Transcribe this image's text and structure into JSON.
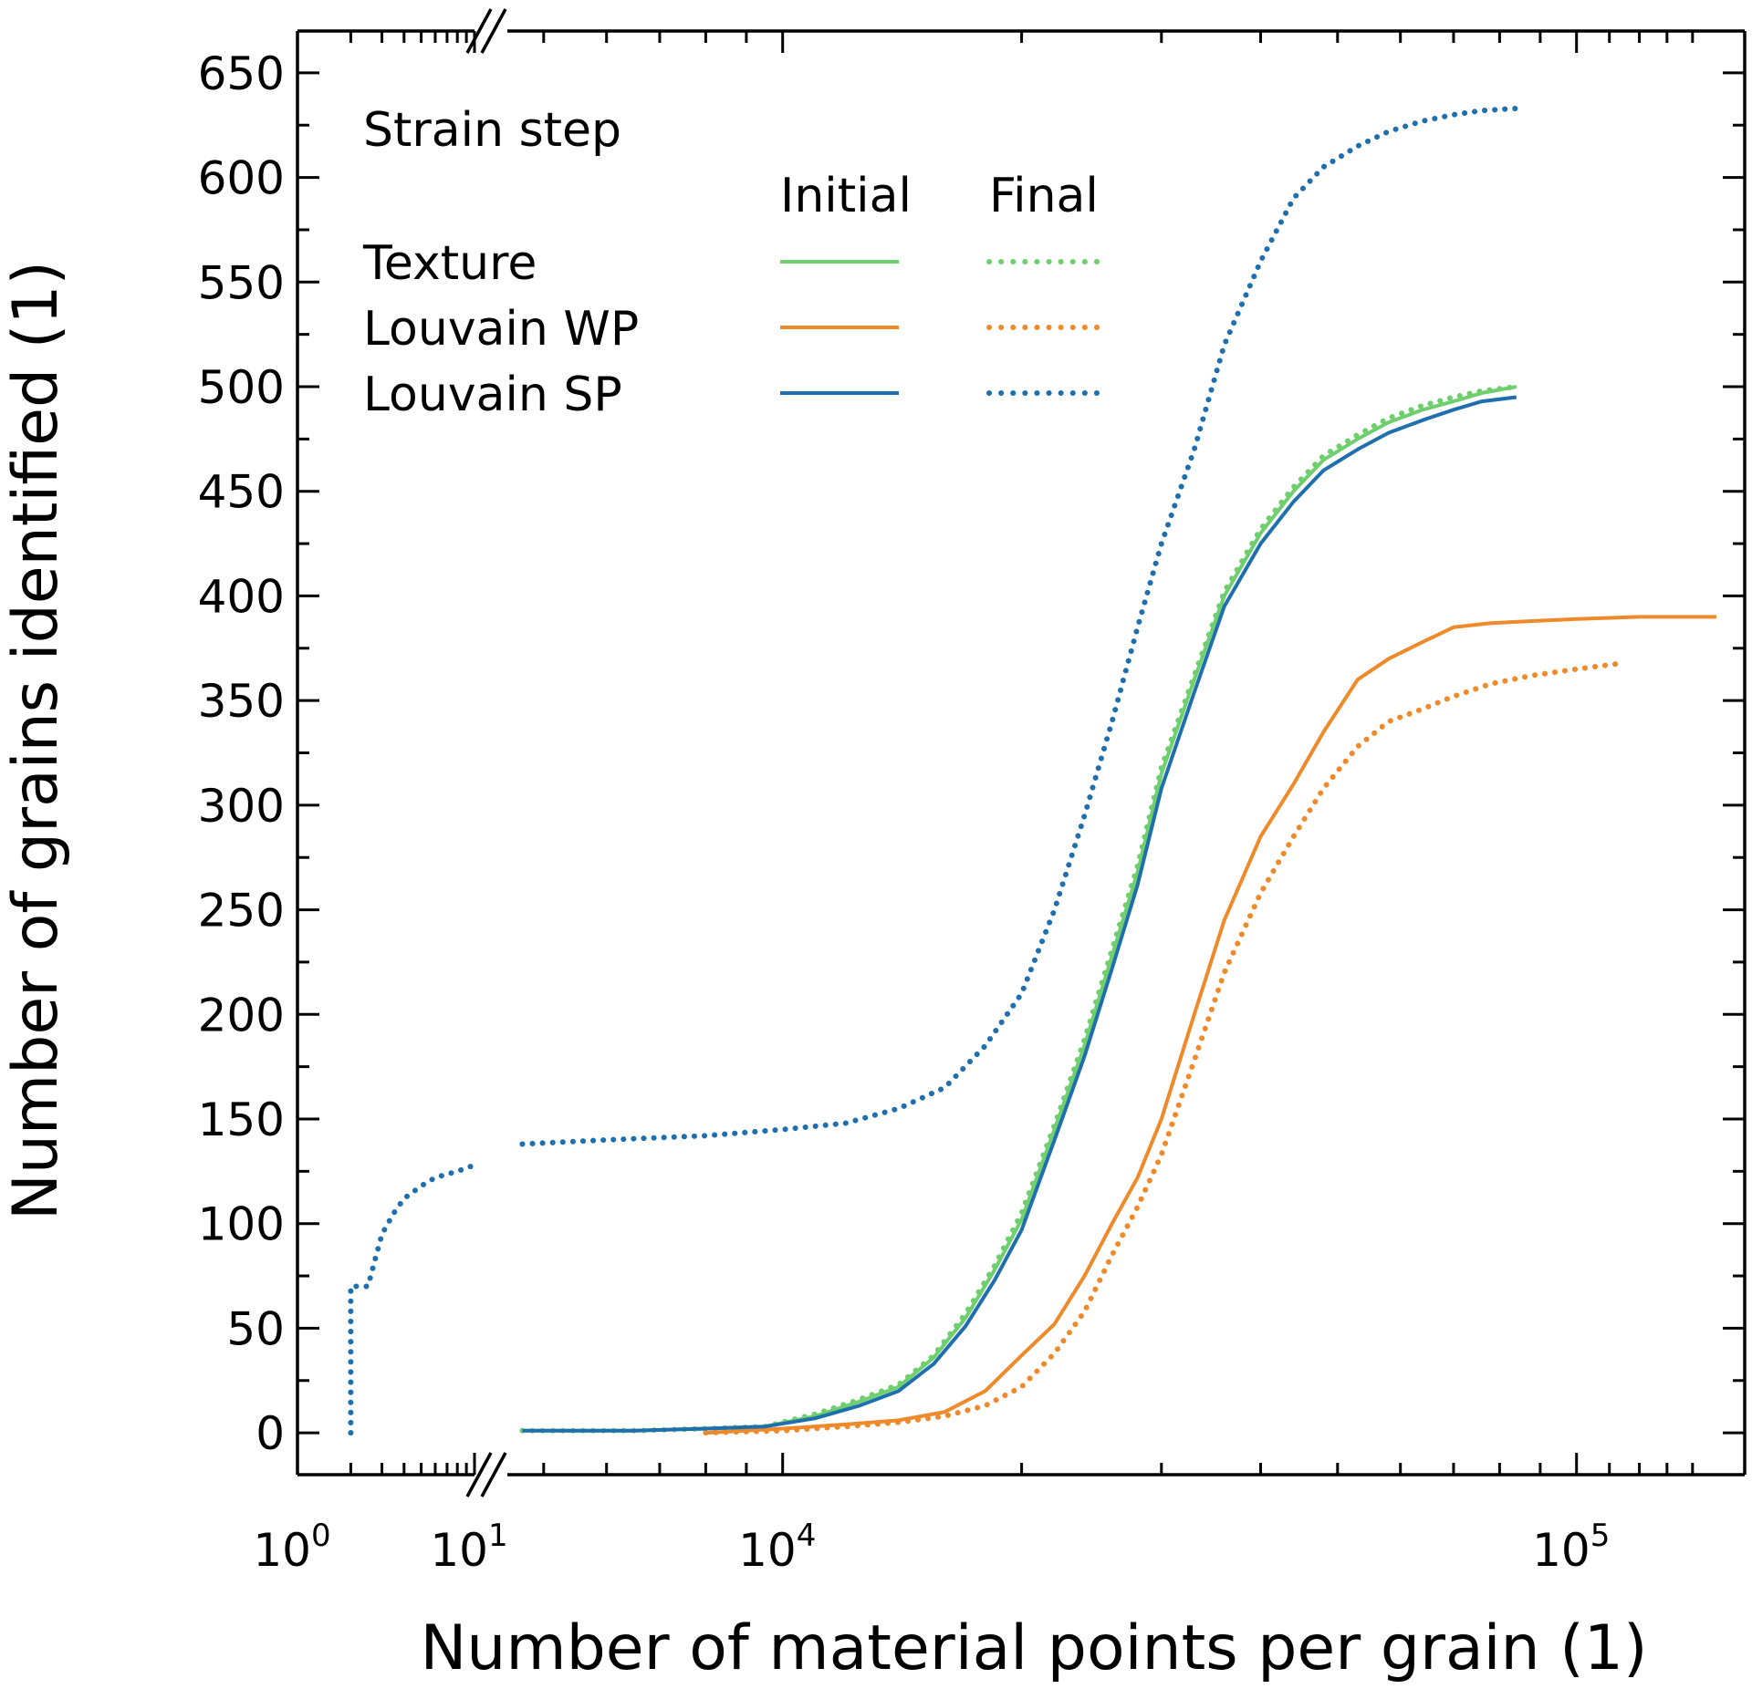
{
  "chart_data": {
    "type": "line",
    "title": "",
    "xlabel": "Number of material points per grain (1)",
    "ylabel": "Number of grains identified (1)",
    "xscale": "log (broken axis)",
    "x_break": [
      11,
      4500
    ],
    "xlim": [
      1,
      150000
    ],
    "ylim": [
      -20,
      670
    ],
    "x_tick_labels": [
      {
        "base": "10",
        "exp": "0",
        "value": 1
      },
      {
        "base": "10",
        "exp": "1",
        "value": 10
      },
      {
        "base": "10",
        "exp": "4",
        "value": 10000
      },
      {
        "base": "10",
        "exp": "5",
        "value": 100000
      }
    ],
    "y_ticks": [
      0,
      50,
      100,
      150,
      200,
      250,
      300,
      350,
      400,
      450,
      500,
      550,
      600,
      650
    ],
    "y_tick_labels": [
      "0",
      "50",
      "100",
      "150",
      "200",
      "250",
      "300",
      "350",
      "400",
      "450",
      "500",
      "550",
      "600",
      "650"
    ],
    "legend": {
      "title": "Strain step",
      "col_initial": "Initial",
      "col_final": "Final",
      "rows": [
        "Texture",
        "Louvain WP",
        "Louvain SP"
      ],
      "placement": "top-left"
    },
    "series": [
      {
        "name": "Texture",
        "step": "Initial",
        "style": "solid",
        "color": "#6fcf6f",
        "x": [
          4700,
          5500,
          6500,
          8000,
          9500,
          11000,
          12500,
          14000,
          15500,
          17000,
          18500,
          20000,
          22000,
          24000,
          26000,
          28000,
          30000,
          33000,
          36000,
          40000,
          44000,
          48000,
          53000,
          58000,
          64000,
          70000,
          76000,
          84000
        ],
        "y": [
          1,
          1,
          1,
          2,
          3,
          8,
          15,
          22,
          36,
          55,
          78,
          102,
          145,
          185,
          228,
          268,
          315,
          360,
          400,
          430,
          450,
          465,
          475,
          483,
          489,
          493,
          497,
          500
        ]
      },
      {
        "name": "Texture",
        "step": "Final",
        "style": "dotted",
        "color": "#6fcf6f",
        "x": [
          4700,
          5500,
          6500,
          8000,
          9500,
          11000,
          12500,
          14000,
          15500,
          17000,
          18500,
          20000,
          22000,
          24000,
          26000,
          28000,
          30000,
          33000,
          36000,
          40000,
          44000,
          48000,
          53000,
          58000,
          64000,
          70000,
          76000,
          84000
        ],
        "y": [
          1,
          1,
          1,
          2,
          3,
          9,
          16,
          23,
          37,
          57,
          80,
          105,
          147,
          188,
          231,
          271,
          318,
          362,
          402,
          432,
          452,
          467,
          477,
          485,
          491,
          495,
          498,
          500
        ]
      },
      {
        "name": "Louvain WP",
        "step": "Initial",
        "style": "solid",
        "color": "#ef8a2a",
        "x": [
          8000,
          10000,
          12000,
          14000,
          16000,
          18000,
          20000,
          22000,
          24000,
          26000,
          28000,
          30000,
          33000,
          36000,
          40000,
          44000,
          48000,
          53000,
          58000,
          64000,
          70000,
          78000,
          88000,
          100000,
          120000,
          150000
        ],
        "y": [
          0,
          2,
          4,
          6,
          10,
          20,
          37,
          52,
          75,
          100,
          122,
          150,
          200,
          245,
          285,
          310,
          335,
          360,
          370,
          378,
          385,
          387,
          388,
          389,
          390,
          390
        ]
      },
      {
        "name": "Louvain WP",
        "step": "Final",
        "style": "dotted",
        "color": "#ef8a2a",
        "x": [
          8000,
          10000,
          12000,
          14000,
          16000,
          18000,
          20000,
          22000,
          24000,
          26000,
          28000,
          30000,
          33000,
          36000,
          40000,
          44000,
          48000,
          53000,
          58000,
          64000,
          70000,
          78000,
          88000,
          100000,
          115000
        ],
        "y": [
          0,
          1,
          3,
          5,
          8,
          13,
          22,
          38,
          58,
          85,
          108,
          133,
          178,
          220,
          258,
          285,
          308,
          328,
          340,
          346,
          352,
          358,
          362,
          365,
          368
        ]
      },
      {
        "name": "Louvain SP",
        "step": "Initial",
        "style": "solid",
        "color": "#1f6faf",
        "x": [
          4700,
          5500,
          6500,
          8000,
          9500,
          11000,
          12500,
          14000,
          15500,
          17000,
          18500,
          20000,
          22000,
          24000,
          26000,
          28000,
          30000,
          33000,
          36000,
          40000,
          44000,
          48000,
          53000,
          58000,
          64000,
          70000,
          76000,
          84000
        ],
        "y": [
          1,
          1,
          1,
          2,
          3,
          7,
          13,
          20,
          33,
          51,
          73,
          97,
          140,
          180,
          222,
          262,
          308,
          354,
          395,
          425,
          445,
          460,
          470,
          478,
          484,
          489,
          493,
          495
        ]
      },
      {
        "name": "Louvain SP",
        "step": "Final",
        "style": "dotted",
        "color": "#1f6faf",
        "x": [
          2,
          2,
          2.5,
          3,
          3.5,
          4,
          5,
          6,
          8,
          10,
          4700,
          6000,
          8000,
          10000,
          12000,
          14000,
          16000,
          18000,
          20000,
          22000,
          24000,
          26000,
          28000,
          30000,
          33000,
          36000,
          40000,
          44000,
          48000,
          53000,
          58000,
          64000,
          70000,
          76000,
          84000
        ],
        "y": [
          0,
          70,
          70,
          95,
          105,
          112,
          118,
          122,
          125,
          128,
          138,
          140,
          142,
          145,
          148,
          155,
          165,
          185,
          210,
          250,
          295,
          340,
          385,
          425,
          470,
          520,
          560,
          590,
          605,
          615,
          622,
          627,
          630,
          632,
          633
        ]
      }
    ]
  }
}
